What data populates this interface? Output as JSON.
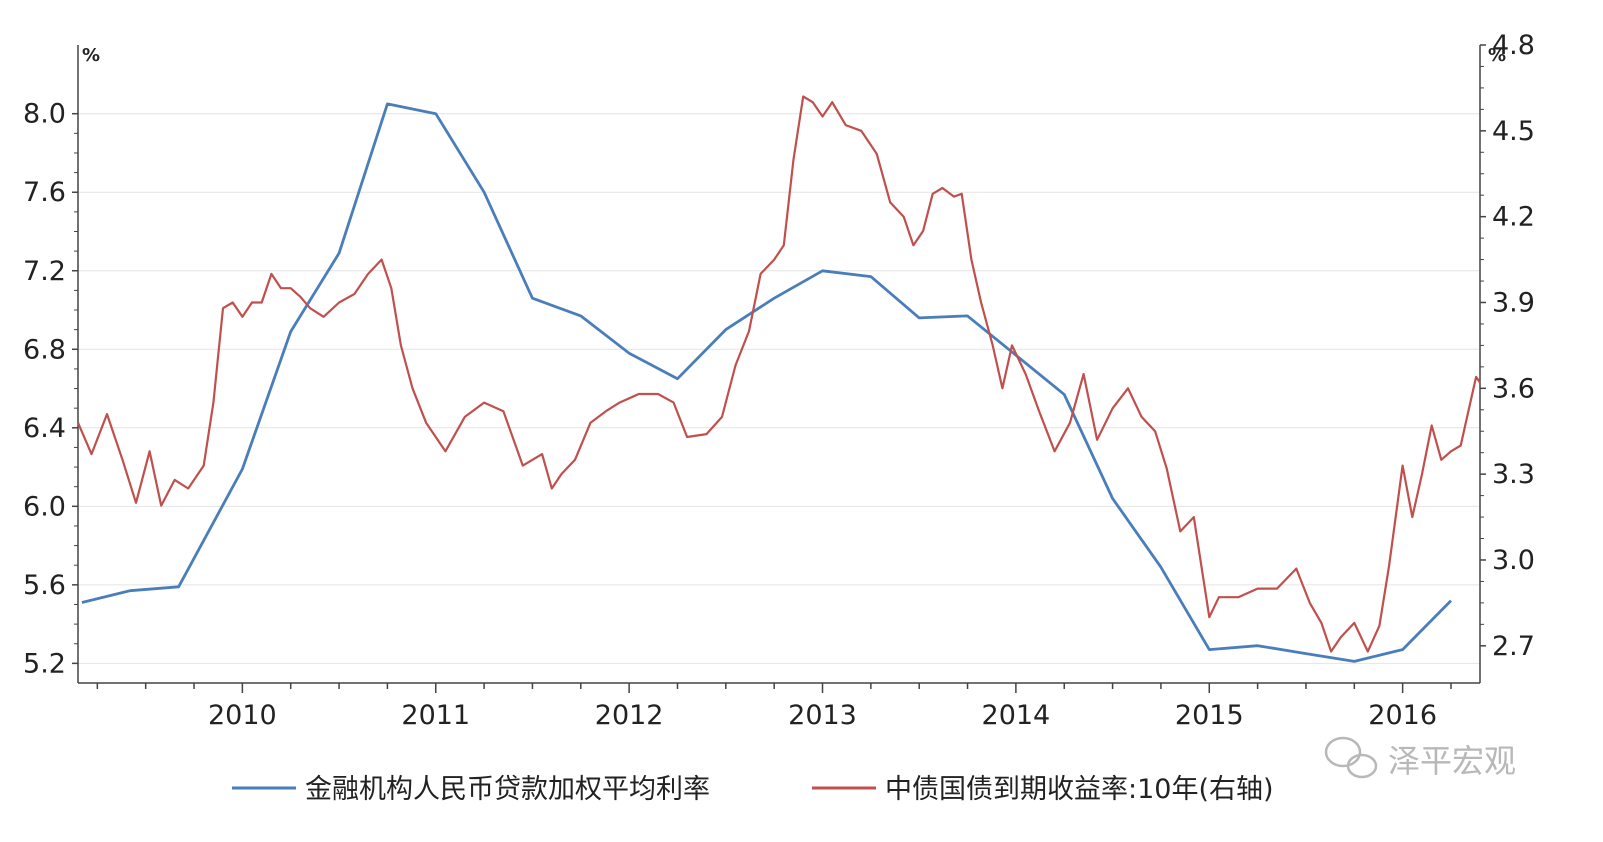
{
  "chart_data": {
    "type": "line",
    "title": "",
    "left_axis": {
      "unit": "%",
      "ylim": [
        5.1,
        8.35
      ],
      "ticks": [
        5.2,
        5.6,
        6.0,
        6.4,
        6.8,
        7.2,
        7.6,
        8.0
      ]
    },
    "right_axis": {
      "unit": "%",
      "ylim": [
        2.57,
        4.8
      ],
      "ticks": [
        2.7,
        3.0,
        3.3,
        3.6,
        3.9,
        4.2,
        4.5,
        4.8
      ]
    },
    "x_axis": {
      "range": [
        2009.15,
        2016.4
      ],
      "labels": [
        "2010",
        "2011",
        "2012",
        "2013",
        "2014",
        "2015",
        "2016"
      ],
      "label_positions": [
        2010.0,
        2011.0,
        2012.0,
        2013.0,
        2014.0,
        2015.0,
        2016.0
      ]
    },
    "grid": "horizontal",
    "legend_position": "bottom",
    "series": [
      {
        "name": "金融机构人民币贷款加权平均利率",
        "axis": "left",
        "color": "#4a7ebb",
        "points": [
          [
            2009.17,
            5.51
          ],
          [
            2009.42,
            5.57
          ],
          [
            2009.67,
            5.59
          ],
          [
            2010.0,
            6.19
          ],
          [
            2010.25,
            6.89
          ],
          [
            2010.5,
            7.29
          ],
          [
            2010.75,
            8.05
          ],
          [
            2011.0,
            8.0
          ],
          [
            2011.25,
            7.6
          ],
          [
            2011.5,
            7.06
          ],
          [
            2011.75,
            6.97
          ],
          [
            2012.0,
            6.78
          ],
          [
            2012.25,
            6.65
          ],
          [
            2012.5,
            6.9
          ],
          [
            2012.75,
            7.06
          ],
          [
            2013.0,
            7.2
          ],
          [
            2013.25,
            7.17
          ],
          [
            2013.5,
            6.96
          ],
          [
            2013.75,
            6.97
          ],
          [
            2014.0,
            6.77
          ],
          [
            2014.25,
            6.57
          ],
          [
            2014.5,
            6.04
          ],
          [
            2014.75,
            5.69
          ],
          [
            2015.0,
            5.27
          ],
          [
            2015.25,
            5.29
          ],
          [
            2015.5,
            5.25
          ],
          [
            2015.75,
            5.21
          ],
          [
            2016.0,
            5.27
          ],
          [
            2016.25,
            5.52
          ]
        ]
      },
      {
        "name": "中债国债到期收益率:10年(右轴)",
        "axis": "right",
        "color": "#c0504d",
        "points": [
          [
            2009.15,
            3.48
          ],
          [
            2009.22,
            3.37
          ],
          [
            2009.3,
            3.51
          ],
          [
            2009.38,
            3.35
          ],
          [
            2009.45,
            3.2
          ],
          [
            2009.52,
            3.38
          ],
          [
            2009.58,
            3.19
          ],
          [
            2009.65,
            3.28
          ],
          [
            2009.72,
            3.25
          ],
          [
            2009.8,
            3.33
          ],
          [
            2009.85,
            3.55
          ],
          [
            2009.9,
            3.88
          ],
          [
            2009.95,
            3.9
          ],
          [
            2010.0,
            3.85
          ],
          [
            2010.05,
            3.9
          ],
          [
            2010.1,
            3.9
          ],
          [
            2010.15,
            4.0
          ],
          [
            2010.2,
            3.95
          ],
          [
            2010.25,
            3.95
          ],
          [
            2010.3,
            3.92
          ],
          [
            2010.35,
            3.88
          ],
          [
            2010.42,
            3.85
          ],
          [
            2010.5,
            3.9
          ],
          [
            2010.58,
            3.93
          ],
          [
            2010.65,
            4.0
          ],
          [
            2010.72,
            4.05
          ],
          [
            2010.77,
            3.95
          ],
          [
            2010.82,
            3.75
          ],
          [
            2010.88,
            3.6
          ],
          [
            2010.95,
            3.48
          ],
          [
            2011.05,
            3.38
          ],
          [
            2011.15,
            3.5
          ],
          [
            2011.25,
            3.55
          ],
          [
            2011.35,
            3.52
          ],
          [
            2011.45,
            3.33
          ],
          [
            2011.55,
            3.37
          ],
          [
            2011.6,
            3.25
          ],
          [
            2011.65,
            3.3
          ],
          [
            2011.72,
            3.35
          ],
          [
            2011.8,
            3.48
          ],
          [
            2011.88,
            3.52
          ],
          [
            2011.95,
            3.55
          ],
          [
            2012.05,
            3.58
          ],
          [
            2012.15,
            3.58
          ],
          [
            2012.23,
            3.55
          ],
          [
            2012.3,
            3.43
          ],
          [
            2012.4,
            3.44
          ],
          [
            2012.48,
            3.5
          ],
          [
            2012.55,
            3.68
          ],
          [
            2012.62,
            3.8
          ],
          [
            2012.68,
            4.0
          ],
          [
            2012.75,
            4.05
          ],
          [
            2012.8,
            4.1
          ],
          [
            2012.85,
            4.4
          ],
          [
            2012.9,
            4.62
          ],
          [
            2012.95,
            4.6
          ],
          [
            2013.0,
            4.55
          ],
          [
            2013.05,
            4.6
          ],
          [
            2013.12,
            4.52
          ],
          [
            2013.2,
            4.5
          ],
          [
            2013.28,
            4.42
          ],
          [
            2013.35,
            4.25
          ],
          [
            2013.42,
            4.2
          ],
          [
            2013.47,
            4.1
          ],
          [
            2013.52,
            4.15
          ],
          [
            2013.57,
            4.28
          ],
          [
            2013.62,
            4.3
          ],
          [
            2013.68,
            4.27
          ],
          [
            2013.72,
            4.28
          ],
          [
            2013.77,
            4.05
          ],
          [
            2013.82,
            3.9
          ],
          [
            2013.88,
            3.75
          ],
          [
            2013.93,
            3.6
          ],
          [
            2013.98,
            3.75
          ],
          [
            2014.05,
            3.65
          ],
          [
            2014.12,
            3.52
          ],
          [
            2014.2,
            3.38
          ],
          [
            2014.28,
            3.48
          ],
          [
            2014.35,
            3.65
          ],
          [
            2014.42,
            3.42
          ],
          [
            2014.5,
            3.53
          ],
          [
            2014.58,
            3.6
          ],
          [
            2014.65,
            3.5
          ],
          [
            2014.72,
            3.45
          ],
          [
            2014.78,
            3.32
          ],
          [
            2014.85,
            3.1
          ],
          [
            2014.92,
            3.15
          ],
          [
            2015.0,
            2.8
          ],
          [
            2015.05,
            2.87
          ],
          [
            2015.15,
            2.87
          ],
          [
            2015.25,
            2.9
          ],
          [
            2015.35,
            2.9
          ],
          [
            2015.45,
            2.97
          ],
          [
            2015.52,
            2.85
          ],
          [
            2015.58,
            2.78
          ],
          [
            2015.63,
            2.68
          ],
          [
            2015.68,
            2.73
          ],
          [
            2015.75,
            2.78
          ],
          [
            2015.82,
            2.68
          ],
          [
            2015.88,
            2.77
          ],
          [
            2015.93,
            2.98
          ],
          [
            2016.0,
            3.33
          ],
          [
            2016.05,
            3.15
          ],
          [
            2016.1,
            3.3
          ],
          [
            2016.15,
            3.47
          ],
          [
            2016.2,
            3.35
          ],
          [
            2016.25,
            3.38
          ],
          [
            2016.3,
            3.4
          ],
          [
            2016.35,
            3.55
          ],
          [
            2016.38,
            3.64
          ],
          [
            2016.4,
            3.62
          ]
        ]
      }
    ],
    "watermark": "泽平宏观"
  }
}
